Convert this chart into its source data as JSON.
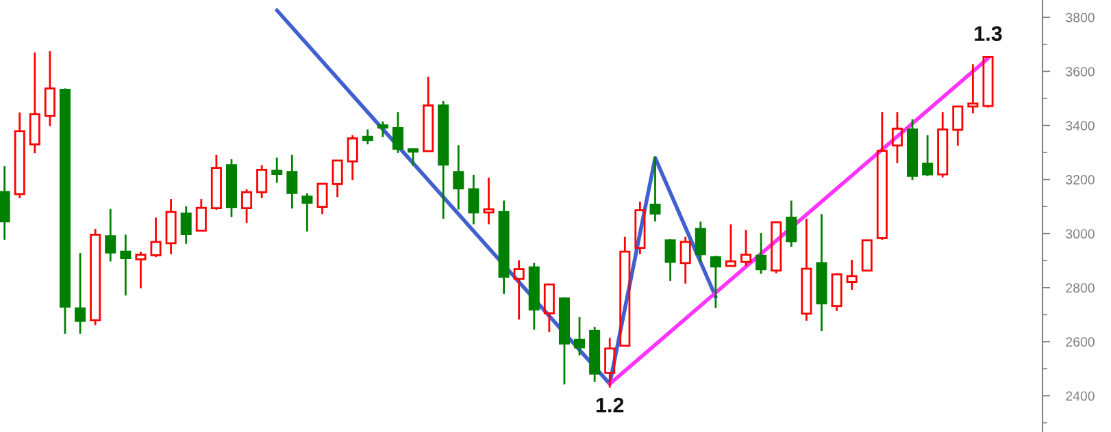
{
  "chart_data": {
    "type": "candlestick",
    "categories": [
      null,
      null,
      null,
      null,
      null,
      null,
      null,
      null,
      null,
      null,
      null,
      null,
      null,
      null,
      null,
      null,
      null,
      null,
      null,
      null,
      null,
      null,
      null,
      null,
      null,
      null,
      null,
      null,
      null,
      null,
      null,
      null,
      null,
      null,
      null,
      null,
      null,
      null,
      null,
      null,
      null,
      null,
      null,
      null,
      null,
      null,
      null,
      null,
      null,
      null,
      null,
      null,
      null,
      null,
      null,
      null,
      null,
      null,
      null,
      null,
      null,
      null,
      null,
      null,
      null,
      null
    ],
    "ohlc": [
      [
        3154,
        3249,
        2977,
        3045
      ],
      [
        3146,
        3448,
        3131,
        3379
      ],
      [
        3330,
        3670,
        3297,
        3442
      ],
      [
        3436,
        3675,
        3398,
        3537
      ],
      [
        3532,
        3537,
        2629,
        2730
      ],
      [
        2723,
        2928,
        2629,
        2677
      ],
      [
        2679,
        3017,
        2661,
        2996
      ],
      [
        2990,
        3091,
        2897,
        2930
      ],
      [
        2933,
        2996,
        2771,
        2909
      ],
      [
        2905,
        2933,
        2798,
        2922
      ],
      [
        2920,
        3059,
        2913,
        2969
      ],
      [
        2964,
        3128,
        2924,
        3080
      ],
      [
        3074,
        3101,
        2962,
        2998
      ],
      [
        3011,
        3128,
        3011,
        3095
      ],
      [
        3094,
        3291,
        3088,
        3243
      ],
      [
        3253,
        3275,
        3061,
        3098
      ],
      [
        3094,
        3164,
        3040,
        3153
      ],
      [
        3153,
        3253,
        3131,
        3236
      ],
      [
        3232,
        3281,
        3188,
        3220
      ],
      [
        3228,
        3291,
        3093,
        3150
      ],
      [
        3137,
        3149,
        3008,
        3114
      ],
      [
        3099,
        3184,
        3072,
        3184
      ],
      [
        3183,
        3270,
        3135,
        3270
      ],
      [
        3267,
        3364,
        3198,
        3352
      ],
      [
        3358,
        3385,
        3330,
        3346
      ],
      [
        3400,
        3415,
        3357,
        3392
      ],
      [
        3390,
        3449,
        3298,
        3314
      ],
      [
        3312,
        3316,
        3250,
        3303
      ],
      [
        3305,
        3580,
        3305,
        3474
      ],
      [
        3474,
        3490,
        3055,
        3255
      ],
      [
        3228,
        3327,
        3089,
        3167
      ],
      [
        3164,
        3217,
        3034,
        3078
      ],
      [
        3078,
        3207,
        3034,
        3090
      ],
      [
        3080,
        3122,
        2777,
        2840
      ],
      [
        2832,
        2901,
        2682,
        2869
      ],
      [
        2875,
        2891,
        2644,
        2719
      ],
      [
        2705,
        2812,
        2635,
        2812
      ],
      [
        2760,
        2764,
        2442,
        2593
      ],
      [
        2607,
        2691,
        2549,
        2579
      ],
      [
        2640,
        2655,
        2451,
        2482
      ],
      [
        2485,
        2614,
        2430,
        2575
      ],
      [
        2585,
        2988,
        2585,
        2933
      ],
      [
        2947,
        3118,
        2924,
        3086
      ],
      [
        3107,
        3284,
        3045,
        3074
      ],
      [
        2975,
        2979,
        2825,
        2895
      ],
      [
        2891,
        2988,
        2815,
        2969
      ],
      [
        3017,
        3044,
        2895,
        2924
      ],
      [
        2912,
        2918,
        2725,
        2878
      ],
      [
        2880,
        3034,
        2880,
        2897
      ],
      [
        2895,
        3013,
        2880,
        2922
      ],
      [
        2918,
        3002,
        2851,
        2868
      ],
      [
        2863,
        3042,
        2853,
        3042
      ],
      [
        3059,
        3122,
        2951,
        2972
      ],
      [
        2704,
        3055,
        2677,
        2870
      ],
      [
        2891,
        3072,
        2640,
        2742
      ],
      [
        2732,
        2854,
        2714,
        2849
      ],
      [
        2821,
        2903,
        2792,
        2843
      ],
      [
        2863,
        2975,
        2863,
        2975
      ],
      [
        2983,
        3449,
        2977,
        3306
      ],
      [
        3326,
        3449,
        3261,
        3388
      ],
      [
        3385,
        3423,
        3198,
        3213
      ],
      [
        3259,
        3364,
        3213,
        3219
      ],
      [
        3219,
        3449,
        3208,
        3385
      ],
      [
        3384,
        3470,
        3325,
        3470
      ],
      [
        3470,
        3626,
        3445,
        3481
      ],
      [
        3472,
        3653,
        3466,
        3653
      ]
    ],
    "colors": [
      "#008000",
      "#ff0000",
      "#ff0000",
      "#ff0000",
      "#008000",
      "#008000",
      "#ff0000",
      "#008000",
      "#008000",
      "#ff0000",
      "#ff0000",
      "#ff0000",
      "#008000",
      "#ff0000",
      "#ff0000",
      "#008000",
      "#ff0000",
      "#ff0000",
      "#008000",
      "#008000",
      "#008000",
      "#ff0000",
      "#ff0000",
      "#ff0000",
      "#008000",
      "#008000",
      "#008000",
      "#008000",
      "#ff0000",
      "#008000",
      "#008000",
      "#008000",
      "#ff0000",
      "#008000",
      "#ff0000",
      "#008000",
      "#ff0000",
      "#008000",
      "#008000",
      "#008000",
      "#ff0000",
      "#ff0000",
      "#ff0000",
      "#008000",
      "#008000",
      "#ff0000",
      "#008000",
      "#008000",
      "#ff0000",
      "#ff0000",
      "#008000",
      "#ff0000",
      "#008000",
      "#ff0000",
      "#008000",
      "#ff0000",
      "#ff0000",
      "#ff0000",
      "#ff0000",
      "#ff0000",
      "#008000",
      "#008000",
      "#ff0000",
      "#ff0000",
      "#ff0000",
      "#ff0000"
    ],
    "series": [
      {
        "type": "line",
        "color": "#4060d0",
        "values": [
          null,
          null,
          null,
          null,
          null,
          null,
          null,
          null,
          null,
          null,
          null,
          null,
          null,
          null,
          null,
          null,
          null,
          null,
          3826,
          null,
          null,
          null,
          null,
          null,
          null,
          null,
          null,
          null,
          null,
          null,
          null,
          null,
          null,
          null,
          null,
          null,
          null,
          null,
          null,
          null,
          2444,
          null,
          null,
          3280,
          null,
          null,
          null,
          2766,
          null,
          null,
          null,
          null,
          null,
          null,
          null,
          null,
          null,
          null,
          null,
          null,
          null,
          null,
          null,
          null,
          null,
          null
        ]
      },
      {
        "type": "line",
        "color": "#ff33ff",
        "values": [
          null,
          null,
          null,
          null,
          null,
          null,
          null,
          null,
          null,
          null,
          null,
          null,
          null,
          null,
          null,
          null,
          null,
          null,
          null,
          null,
          null,
          null,
          null,
          null,
          null,
          null,
          null,
          null,
          null,
          null,
          null,
          null,
          null,
          null,
          null,
          null,
          null,
          null,
          null,
          null,
          2444,
          null,
          null,
          null,
          null,
          null,
          null,
          null,
          null,
          null,
          null,
          null,
          null,
          null,
          null,
          null,
          null,
          null,
          null,
          null,
          null,
          null,
          null,
          null,
          null,
          3648
        ]
      }
    ],
    "annotations": [
      {
        "text": "1.2",
        "y": 2444
      },
      {
        "text": "1.3",
        "y": 3648
      }
    ],
    "ylim": [
      2266,
      3864
    ],
    "yticks": [
      2400,
      2600,
      2800,
      3000,
      3200,
      3400,
      3600,
      3800
    ],
    "tick_labels": "y",
    "grid": false,
    "line_style": "solid"
  }
}
